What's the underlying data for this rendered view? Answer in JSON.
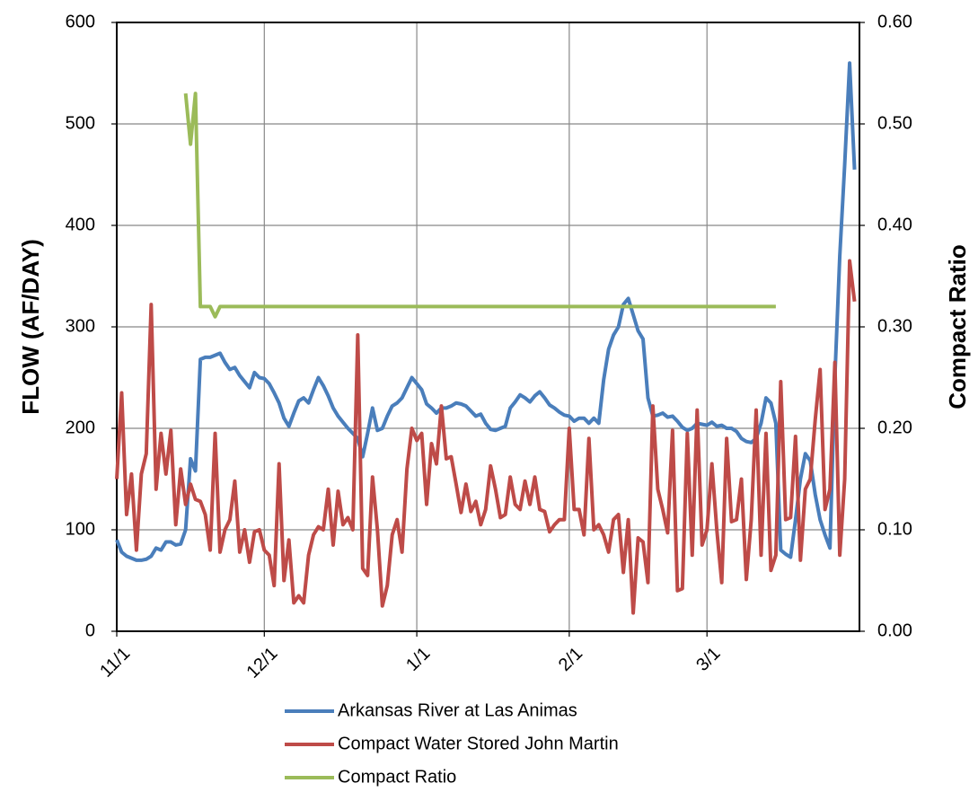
{
  "chart_data": {
    "type": "line",
    "x": [
      "11/1",
      "11/2",
      "11/3",
      "11/4",
      "11/5",
      "11/6",
      "11/7",
      "11/8",
      "11/9",
      "11/10",
      "11/11",
      "11/12",
      "11/13",
      "11/14",
      "11/15",
      "11/16",
      "11/17",
      "11/18",
      "11/19",
      "11/20",
      "11/21",
      "11/22",
      "11/23",
      "11/24",
      "11/25",
      "11/26",
      "11/27",
      "11/28",
      "11/29",
      "11/30",
      "12/1",
      "12/2",
      "12/3",
      "12/4",
      "12/5",
      "12/6",
      "12/7",
      "12/8",
      "12/9",
      "12/10",
      "12/11",
      "12/12",
      "12/13",
      "12/14",
      "12/15",
      "12/16",
      "12/17",
      "12/18",
      "12/19",
      "12/20",
      "12/21",
      "12/22",
      "12/23",
      "12/24",
      "12/25",
      "12/26",
      "12/27",
      "12/28",
      "12/29",
      "12/30",
      "12/31",
      "1/1",
      "1/2",
      "1/3",
      "1/4",
      "1/5",
      "1/6",
      "1/7",
      "1/8",
      "1/9",
      "1/10",
      "1/11",
      "1/12",
      "1/13",
      "1/14",
      "1/15",
      "1/16",
      "1/17",
      "1/18",
      "1/19",
      "1/20",
      "1/21",
      "1/22",
      "1/23",
      "1/24",
      "1/25",
      "1/26",
      "1/27",
      "1/28",
      "1/29",
      "1/30",
      "1/31",
      "2/1",
      "2/2",
      "2/3",
      "2/4",
      "2/5",
      "2/6",
      "2/7",
      "2/8",
      "2/9",
      "2/10",
      "2/11",
      "2/12",
      "2/13",
      "2/14",
      "2/15",
      "2/16",
      "2/17",
      "2/18",
      "2/19",
      "2/20",
      "2/21",
      "2/22",
      "2/23",
      "2/24",
      "2/25",
      "2/26",
      "2/27",
      "2/28",
      "3/1",
      "3/2",
      "3/3",
      "3/4",
      "3/5",
      "3/6",
      "3/7",
      "3/8",
      "3/9",
      "3/10",
      "3/11",
      "3/12",
      "3/13",
      "3/14",
      "3/15",
      "3/16",
      "3/17",
      "3/18",
      "3/19",
      "3/20",
      "3/21",
      "3/22",
      "3/23",
      "3/24",
      "3/25",
      "3/26",
      "3/27",
      "3/28",
      "3/29",
      "3/30",
      "3/31"
    ],
    "xticks": [
      "11/1",
      "12/1",
      "1/1",
      "2/1",
      "3/1"
    ],
    "ylabel": "FLOW (AF/DAY)",
    "y2label": "Compact Ratio",
    "ylim": [
      0,
      600
    ],
    "yticks": [
      0,
      100,
      200,
      300,
      400,
      500,
      600
    ],
    "y2lim": [
      0,
      0.6
    ],
    "y2ticks": [
      {
        "value": 0,
        "label": "0.00"
      },
      {
        "value": 0.1,
        "label": "0.10"
      },
      {
        "value": 0.2,
        "label": "0.20"
      },
      {
        "value": 0.3,
        "label": "0.30"
      },
      {
        "value": 0.4,
        "label": "0.40"
      },
      {
        "value": 0.5,
        "label": "0.50"
      },
      {
        "value": 0.6,
        "label": "0.60"
      }
    ],
    "grid": true,
    "series": [
      {
        "name": "Arkansas River at Las Animas",
        "color": "#4a7ebb",
        "values": [
          90,
          78,
          74,
          72,
          70,
          70,
          71,
          74,
          82,
          80,
          88,
          88,
          85,
          86,
          100,
          170,
          158,
          268,
          270,
          270,
          272,
          274,
          265,
          258,
          260,
          252,
          246,
          240,
          255,
          250,
          249,
          244,
          235,
          225,
          210,
          202,
          215,
          227,
          230,
          225,
          238,
          250,
          242,
          232,
          220,
          212,
          206,
          200,
          195,
          190,
          172,
          195,
          220,
          198,
          200,
          212,
          222,
          225,
          230,
          240,
          250,
          244,
          238,
          224,
          220,
          215,
          220,
          220,
          222,
          225,
          224,
          222,
          217,
          212,
          214,
          205,
          199,
          198,
          200,
          202,
          220,
          226,
          233,
          230,
          226,
          232,
          236,
          230,
          223,
          220,
          216,
          213,
          212,
          207,
          210,
          210,
          205,
          210,
          205,
          248,
          278,
          292,
          300,
          322,
          328,
          312,
          296,
          288,
          230,
          212,
          213,
          215,
          211,
          212,
          207,
          201,
          198,
          200,
          205,
          204,
          203,
          206,
          202,
          203,
          200,
          200,
          197,
          190,
          187,
          186,
          190,
          205,
          230,
          225,
          205,
          80,
          76,
          73,
          110,
          150,
          175,
          168,
          135,
          110,
          95,
          82,
          250,
          370,
          460,
          560,
          455
        ]
      },
      {
        "name": "Compact Water Stored John Martin",
        "color": "#be4b48",
        "values": [
          150,
          235,
          115,
          155,
          80,
          155,
          175,
          322,
          140,
          195,
          155,
          198,
          105,
          160,
          125,
          145,
          130,
          128,
          115,
          80,
          195,
          78,
          100,
          110,
          148,
          78,
          100,
          68,
          98,
          100,
          80,
          75,
          45,
          165,
          50,
          90,
          28,
          35,
          28,
          75,
          95,
          103,
          100,
          140,
          85,
          138,
          105,
          112,
          100,
          292,
          62,
          55,
          152,
          100,
          25,
          45,
          95,
          110,
          78,
          160,
          200,
          188,
          195,
          125,
          185,
          165,
          222,
          170,
          172,
          145,
          117,
          145,
          118,
          128,
          105,
          120,
          163,
          140,
          112,
          115,
          152,
          125,
          120,
          148,
          125,
          152,
          120,
          118,
          98,
          105,
          110,
          110,
          200,
          120,
          120,
          95,
          190,
          100,
          105,
          95,
          78,
          110,
          115,
          58,
          110,
          18,
          92,
          88,
          48,
          222,
          140,
          120,
          97,
          198,
          40,
          42,
          195,
          75,
          218,
          85,
          100,
          165,
          100,
          48,
          190,
          108,
          110,
          150,
          51,
          110,
          218,
          75,
          195,
          60,
          75,
          246,
          110,
          112,
          192,
          70,
          140,
          150,
          208,
          258,
          120,
          140,
          265,
          75,
          150,
          365,
          325
        ]
      },
      {
        "name": "Compact Ratio",
        "color": "#9bbb59",
        "axis": "y2",
        "values": [
          null,
          null,
          null,
          null,
          null,
          null,
          null,
          null,
          null,
          null,
          null,
          null,
          null,
          null,
          0.53,
          0.48,
          0.53,
          0.32,
          0.32,
          0.32,
          0.31,
          0.32,
          0.32,
          0.32,
          0.32,
          0.32,
          0.32,
          0.32,
          0.32,
          0.32,
          0.32,
          0.32,
          0.32,
          0.32,
          0.32,
          0.32,
          0.32,
          0.32,
          0.32,
          0.32,
          0.32,
          0.32,
          0.32,
          0.32,
          0.32,
          0.32,
          0.32,
          0.32,
          0.32,
          0.32,
          0.32,
          0.32,
          0.32,
          0.32,
          0.32,
          0.32,
          0.32,
          0.32,
          0.32,
          0.32,
          0.32,
          0.32,
          0.32,
          0.32,
          0.32,
          0.32,
          0.32,
          0.32,
          0.32,
          0.32,
          0.32,
          0.32,
          0.32,
          0.32,
          0.32,
          0.32,
          0.32,
          0.32,
          0.32,
          0.32,
          0.32,
          0.32,
          0.32,
          0.32,
          0.32,
          0.32,
          0.32,
          0.32,
          0.32,
          0.32,
          0.32,
          0.32,
          0.32,
          0.32,
          0.32,
          0.32,
          0.32,
          0.32,
          0.32,
          0.32,
          0.32,
          0.32,
          0.32,
          0.32,
          0.32,
          0.32,
          0.32,
          0.32,
          0.32,
          0.32,
          0.32,
          0.32,
          0.32,
          0.32,
          0.32,
          0.32,
          0.32,
          0.32,
          0.32,
          0.32,
          0.32,
          0.32,
          0.32,
          0.32,
          0.32,
          0.32,
          0.32,
          0.32,
          0.32,
          0.32,
          0.32,
          0.32,
          0.32,
          0.32,
          0.32,
          null,
          null,
          null,
          null,
          null,
          null,
          null,
          null,
          null,
          null,
          null,
          null,
          null,
          null,
          null,
          null
        ]
      }
    ]
  }
}
